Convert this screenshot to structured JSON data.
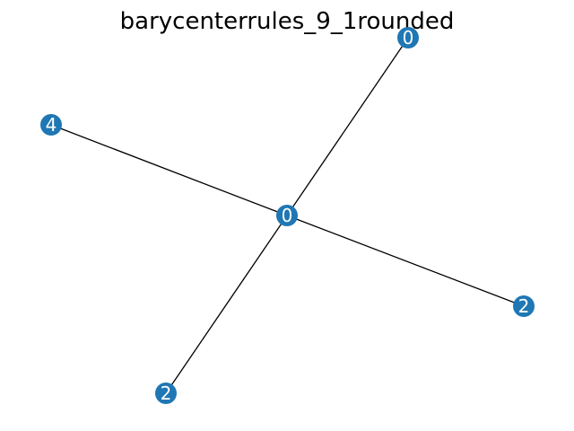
{
  "title": "barycenterrules_9_1rounded",
  "colors": {
    "node_fill": "#1f77b4",
    "edge_stroke": "#000000",
    "label_color": "#ffffff",
    "background": "#ffffff"
  },
  "graph": {
    "nodes": [
      {
        "id": "center",
        "label": "0"
      },
      {
        "id": "top-right",
        "label": "0"
      },
      {
        "id": "left",
        "label": "4"
      },
      {
        "id": "right",
        "label": "2"
      },
      {
        "id": "bottom",
        "label": "2"
      }
    ],
    "edges": [
      {
        "source": "center",
        "target": "top-right"
      },
      {
        "source": "center",
        "target": "left"
      },
      {
        "source": "center",
        "target": "right"
      },
      {
        "source": "center",
        "target": "bottom"
      }
    ]
  }
}
